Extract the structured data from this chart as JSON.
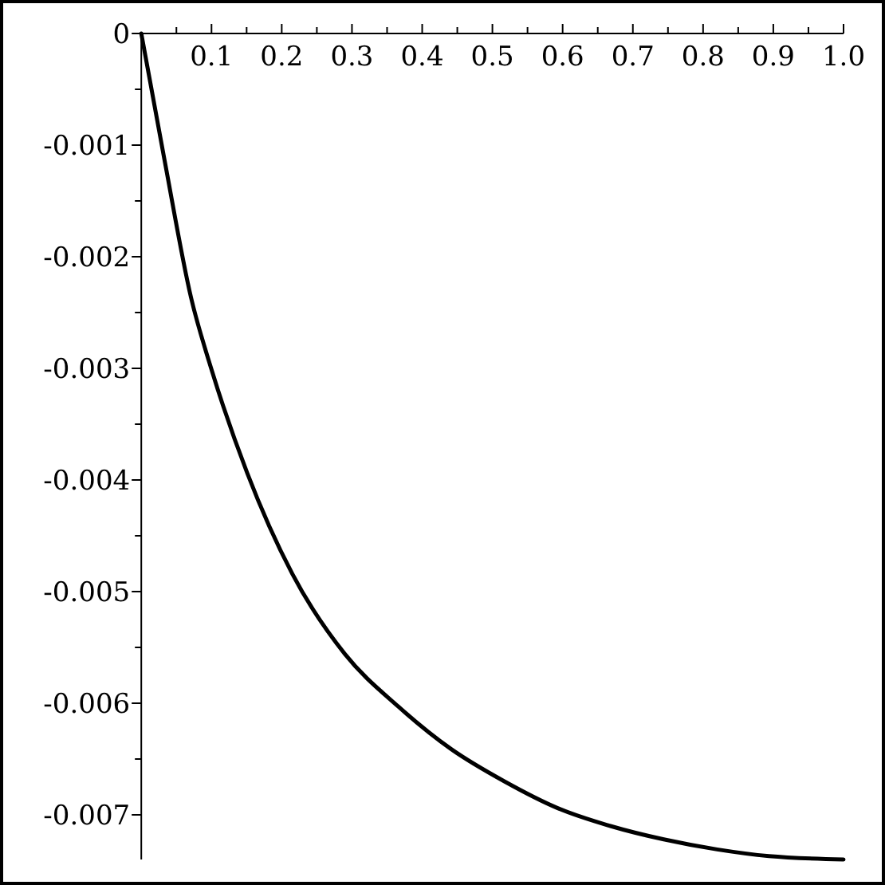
{
  "chart_data": {
    "type": "line",
    "x": [
      0,
      0.033,
      0.071,
      0.101,
      0.151,
      0.215,
      0.29,
      0.366,
      0.441,
      0.517,
      0.593,
      0.668,
      0.744,
      0.82,
      0.894,
      1.0
    ],
    "series": [
      {
        "color": "#000000",
        "values": [
          0,
          -0.00113,
          -0.00237,
          -0.00303,
          -0.00394,
          -0.00484,
          -0.00556,
          -0.00603,
          -0.00641,
          -0.0067,
          -0.00694,
          -0.0071,
          -0.00722,
          -0.00731,
          -0.00737,
          -0.0074
        ]
      }
    ],
    "xlim": [
      0,
      1.0
    ],
    "xticks": [
      {
        "value": 0.05,
        "label": null
      },
      0.1,
      {
        "value": 0.15,
        "label": null
      },
      0.2,
      {
        "value": 0.25,
        "label": null
      },
      0.3,
      {
        "value": 0.35,
        "label": null
      },
      0.4,
      {
        "value": 0.45,
        "label": null
      },
      0.5,
      {
        "value": 0.55,
        "label": null
      },
      0.6,
      {
        "value": 0.65,
        "label": null
      },
      0.7,
      {
        "value": 0.75,
        "label": null
      },
      0.8,
      {
        "value": 0.85,
        "label": null
      },
      0.9,
      {
        "value": 0.95,
        "label": null
      },
      {
        "value": 1.0,
        "label": "1.0"
      }
    ],
    "ylim": [
      -0.0074,
      0
    ],
    "yticks": [
      0,
      {
        "value": -0.0005,
        "label": null
      },
      -0.001,
      {
        "value": -0.0015,
        "label": null
      },
      -0.002,
      {
        "value": -0.0025,
        "label": null
      },
      -0.003,
      {
        "value": -0.0035,
        "label": null
      },
      -0.004,
      {
        "value": -0.0045,
        "label": null
      },
      -0.005,
      {
        "value": -0.0055,
        "label": null
      },
      -0.006,
      {
        "value": -0.0065,
        "label": null
      },
      -0.007
    ],
    "grid": false,
    "marker": "none",
    "line_style": "solid"
  }
}
